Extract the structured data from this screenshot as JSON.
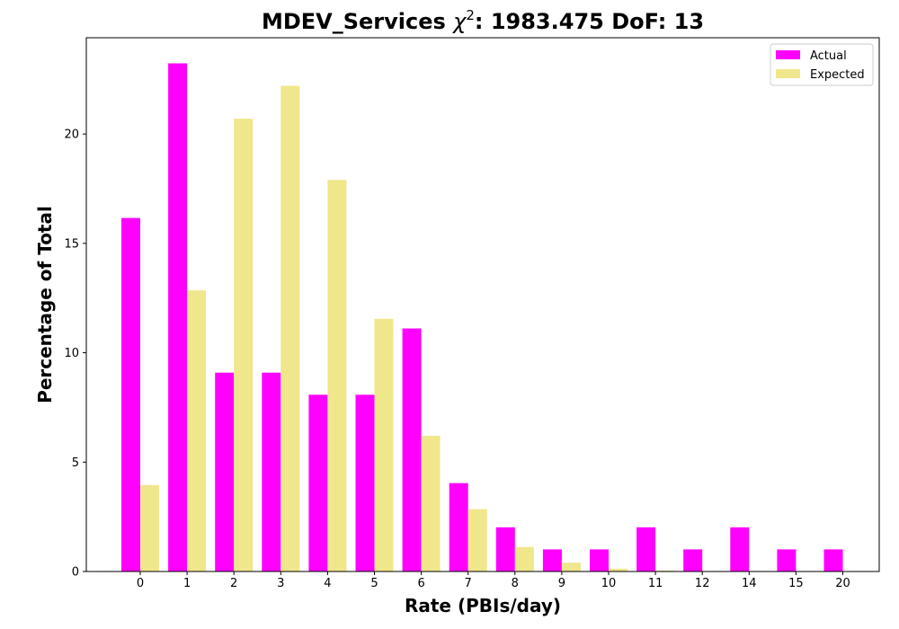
{
  "chart_data": {
    "type": "bar",
    "title": {
      "prefix": "MDEV_Services ",
      "chi": "χ",
      "sup": "2",
      "suffix": ": 1983.475 DoF: 13"
    },
    "xlabel": "Rate (PBIs/day)",
    "ylabel": "Percentage of Total",
    "categories": [
      "0",
      "1",
      "2",
      "3",
      "4",
      "5",
      "6",
      "7",
      "8",
      "9",
      "10",
      "11",
      "12",
      "14",
      "15",
      "20"
    ],
    "series": [
      {
        "name": "Actual",
        "color": "#ff00ff",
        "values": [
          16.16,
          23.23,
          9.09,
          9.09,
          8.08,
          8.08,
          11.11,
          4.04,
          2.02,
          1.01,
          1.01,
          2.02,
          1.01,
          2.02,
          1.01,
          1.01
        ]
      },
      {
        "name": "Expected",
        "color": "#f0e68c",
        "values": [
          3.95,
          12.85,
          20.7,
          22.2,
          17.9,
          11.55,
          6.2,
          2.85,
          1.12,
          0.4,
          0.13,
          0.04,
          0.01,
          0.0,
          0.0,
          0.0
        ]
      }
    ],
    "yticks": [
      0,
      5,
      10,
      15,
      20
    ],
    "ylim": [
      0,
      24.4
    ],
    "grid": false,
    "legend_position": "top-right"
  }
}
